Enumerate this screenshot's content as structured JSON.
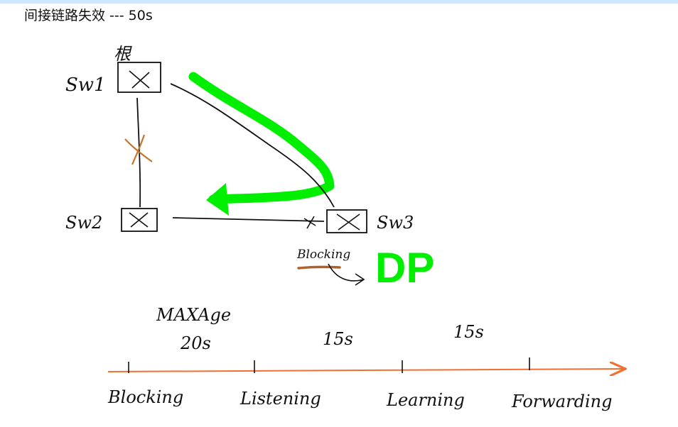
{
  "page": {
    "title": "间接链路失效 --- 50s"
  },
  "topology": {
    "root_label": "根",
    "switches": [
      {
        "id": "sw1",
        "label": "Sw1"
      },
      {
        "id": "sw2",
        "label": "Sw2"
      },
      {
        "id": "sw3",
        "label": "Sw3"
      }
    ],
    "port_labels": {
      "blocking": "Blocking",
      "designated": "DP"
    }
  },
  "colors": {
    "highlight": "#00ee00",
    "failure_mark": "#c8742a",
    "timeline": "#f07030",
    "ink": "#111111"
  },
  "timeline": {
    "timer_labels": [
      {
        "line1": "MAXAge",
        "line2": "20s"
      },
      {
        "line1": "15s"
      },
      {
        "line1": "15s"
      }
    ],
    "states": [
      "Blocking",
      "Listening",
      "Learning",
      "Forwarding"
    ]
  }
}
